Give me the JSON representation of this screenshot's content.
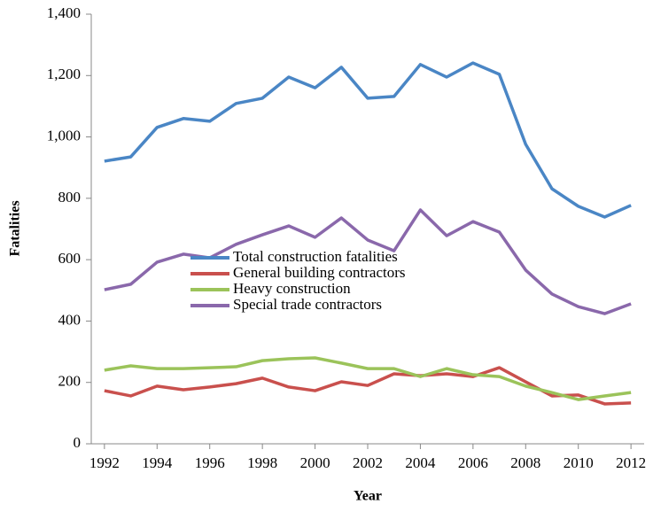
{
  "chart_data": {
    "type": "line",
    "x_label": "Year",
    "y_label": "Fatalities",
    "x": [
      1992,
      1993,
      1994,
      1995,
      1996,
      1997,
      1998,
      1999,
      2000,
      2001,
      2002,
      2003,
      2004,
      2005,
      2006,
      2007,
      2008,
      2009,
      2010,
      2011,
      2012
    ],
    "series": [
      {
        "name": "Total construction fatalities",
        "color": "#4a86c5",
        "values": [
          921,
          935,
          1031,
          1060,
          1051,
          1109,
          1126,
          1195,
          1160,
          1227,
          1126,
          1132,
          1236,
          1195,
          1241,
          1204,
          976,
          831,
          774,
          739,
          777
        ]
      },
      {
        "name": "General building contractors",
        "color": "#c9504d",
        "values": [
          173,
          156,
          188,
          176,
          185,
          196,
          214,
          185,
          173,
          202,
          190,
          228,
          222,
          228,
          219,
          248,
          202,
          156,
          159,
          130,
          133
        ]
      },
      {
        "name": "Heavy construction",
        "color": "#9bc35a",
        "values": [
          240,
          254,
          245,
          245,
          248,
          251,
          271,
          277,
          280,
          263,
          245,
          245,
          219,
          245,
          225,
          219,
          188,
          167,
          144,
          156,
          167
        ]
      },
      {
        "name": "Special trade contractors",
        "color": "#8a68ab",
        "values": [
          502,
          520,
          592,
          618,
          606,
          650,
          681,
          710,
          673,
          736,
          664,
          629,
          762,
          678,
          724,
          690,
          566,
          488,
          447,
          424,
          456
        ]
      }
    ],
    "xlim": [
      1991.5,
      2012.5
    ],
    "xticks": [
      1992,
      1994,
      1996,
      1998,
      2000,
      2002,
      2004,
      2006,
      2008,
      2010,
      2012
    ],
    "ylim": [
      0,
      1400
    ],
    "yticks": [
      0,
      200,
      400,
      600,
      800,
      {
        "value": 1000,
        "label": "1,000"
      },
      {
        "value": 1200,
        "label": "1,200"
      },
      {
        "value": 1400,
        "label": "1,400"
      }
    ],
    "legend": "center-left",
    "grid": false
  }
}
